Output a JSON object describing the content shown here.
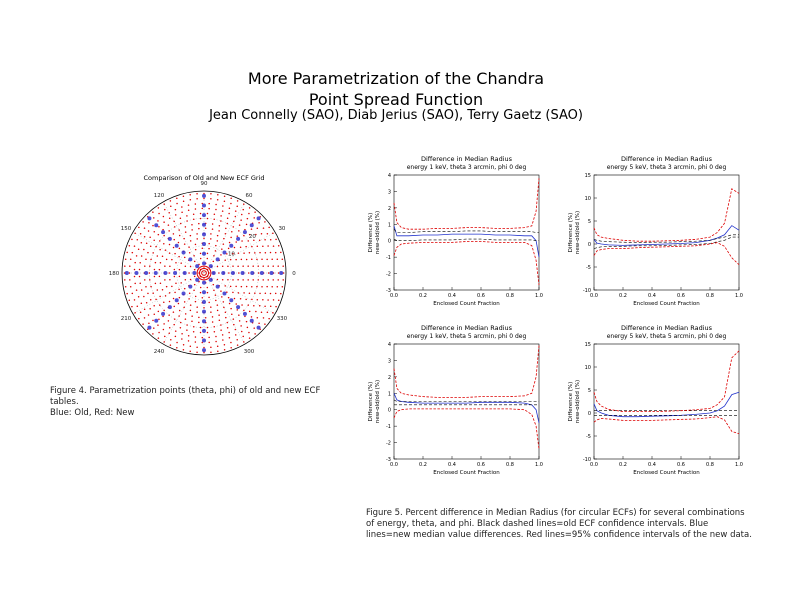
{
  "header": {
    "title_line1": "More Parametrization of the Chandra",
    "title_line2": "Point Spread Function",
    "authors": "Jean Connelly (SAO), Diab Jerius (SAO), Terry Gaetz (SAO)"
  },
  "figure4": {
    "caption": "Figure 4.  Parametrization points (theta, phi) of old and new ECF tables.\nBlue: Old, Red: New",
    "chart_data": {
      "type": "scatter",
      "title": "Comparison of Old and New ECF Grid",
      "angle_labels": [
        "0",
        "30",
        "60",
        "90",
        "120",
        "150",
        "180",
        "210",
        "240",
        "270",
        "300",
        "330"
      ],
      "radial_labels": [
        "10",
        "20"
      ],
      "series": [
        {
          "name": "Old",
          "color": "#3333cc"
        },
        {
          "name": "New",
          "color": "#dd0000"
        }
      ]
    }
  },
  "figure5": {
    "caption": "Figure 5.  Percent difference in Median Radius (for circular ECFs) for several combinations\nof energy, theta, and phi.  Black dashed lines=old ECF confidence intervals.  Blue\nlines=new median value differences.  Red lines=95% confidence intervals of the new data.",
    "panels": [
      {
        "title": "Difference in Median Radius",
        "subtitle": "energy  1 keV, theta  3 arcmin, phi  0 deg",
        "xlabel": "Enclosed Count Fraction",
        "ylabel": "Difference (%)",
        "ylabel2": "new-old/old (%)",
        "xticks": [
          "0.0",
          "0.2",
          "0.4",
          "0.6",
          "0.8",
          "1.0"
        ],
        "yticks": [
          "4",
          "3",
          "2",
          "1",
          "0",
          "-1",
          "-2",
          "-3"
        ],
        "chart_data": {
          "type": "line",
          "x": [
            0.0,
            0.02,
            0.05,
            0.1,
            0.2,
            0.3,
            0.4,
            0.5,
            0.6,
            0.7,
            0.8,
            0.9,
            0.95,
            0.98,
            1.0
          ],
          "ylim": [
            -3,
            4
          ],
          "series": [
            {
              "name": "median",
              "color": "#2233cc",
              "values": [
                0.9,
                0.3,
                0.3,
                0.3,
                0.35,
                0.35,
                0.4,
                0.4,
                0.4,
                0.35,
                0.35,
                0.3,
                0.3,
                0.0,
                -1.0
              ]
            },
            {
              "name": "old interval upper",
              "color": "#000000",
              "values": [
                0.7,
                0.5,
                0.5,
                0.5,
                0.55,
                0.55,
                0.55,
                0.6,
                0.6,
                0.55,
                0.55,
                0.55,
                0.55,
                0.5,
                0.5
              ]
            },
            {
              "name": "old interval lower",
              "color": "#000000",
              "values": [
                0.1,
                0.0,
                0.0,
                0.0,
                0.05,
                0.05,
                0.05,
                0.1,
                0.1,
                0.05,
                0.05,
                0.05,
                0.05,
                0.0,
                0.0
              ]
            },
            {
              "name": "new 95% upper",
              "color": "#dd0000",
              "values": [
                2.3,
                1.1,
                0.8,
                0.7,
                0.7,
                0.75,
                0.75,
                0.8,
                0.8,
                0.75,
                0.75,
                0.8,
                0.9,
                1.8,
                3.8
              ]
            },
            {
              "name": "new 95% lower",
              "color": "#dd0000",
              "values": [
                -0.9,
                -0.4,
                -0.2,
                -0.15,
                -0.1,
                -0.1,
                -0.1,
                -0.05,
                -0.05,
                -0.1,
                -0.1,
                -0.1,
                -0.3,
                -1.2,
                -2.7
              ]
            }
          ]
        }
      },
      {
        "title": "Difference in Median Radius",
        "subtitle": "energy  5 keV, theta  3 arcmin, phi  0 deg",
        "xlabel": "Enclosed Count Fraction",
        "ylabel": "Difference (%)",
        "ylabel2": "new-old/old (%)",
        "xticks": [
          "0.0",
          "0.2",
          "0.4",
          "0.6",
          "0.8",
          "1.0"
        ],
        "yticks": [
          "15",
          "10",
          "5",
          "0",
          "-5",
          "-10"
        ],
        "chart_data": {
          "type": "line",
          "x": [
            0.0,
            0.02,
            0.05,
            0.1,
            0.2,
            0.3,
            0.4,
            0.5,
            0.6,
            0.7,
            0.8,
            0.85,
            0.9,
            0.95,
            1.0
          ],
          "ylim": [
            -10,
            15
          ],
          "series": [
            {
              "name": "median",
              "color": "#2233cc",
              "values": [
                1.0,
                0.2,
                0.0,
                -0.2,
                -0.3,
                -0.2,
                -0.1,
                0.0,
                0.1,
                0.3,
                0.8,
                1.3,
                2.0,
                4.0,
                3.0
              ]
            },
            {
              "name": "old interval upper",
              "color": "#000000",
              "values": [
                1.0,
                0.8,
                0.6,
                0.5,
                0.4,
                0.3,
                0.4,
                0.4,
                0.5,
                0.6,
                0.8,
                1.2,
                1.5,
                2.0,
                2.0
              ]
            },
            {
              "name": "old interval lower",
              "color": "#000000",
              "values": [
                -1.0,
                -0.8,
                -0.6,
                -0.5,
                -0.5,
                -0.4,
                -0.4,
                -0.3,
                -0.2,
                -0.1,
                0.1,
                0.5,
                0.8,
                1.5,
                1.5
              ]
            },
            {
              "name": "new 95% upper",
              "color": "#dd0000",
              "values": [
                3.5,
                2.0,
                1.5,
                1.2,
                0.8,
                0.6,
                0.6,
                0.7,
                0.8,
                1.0,
                1.5,
                2.5,
                4.5,
                12.0,
                11.0
              ]
            },
            {
              "name": "new 95% lower",
              "color": "#dd0000",
              "values": [
                -2.5,
                -1.5,
                -1.2,
                -1.0,
                -1.0,
                -0.8,
                -0.7,
                -0.6,
                -0.5,
                -0.4,
                0.0,
                0.3,
                -0.5,
                -3.0,
                -4.5
              ]
            }
          ]
        }
      },
      {
        "title": "Difference in Median Radius",
        "subtitle": "energy  1 keV, theta  5 arcmin, phi  0 deg",
        "xlabel": "Enclosed Count Fraction",
        "ylabel": "Difference (%)",
        "ylabel2": "new-old/old (%)",
        "xticks": [
          "0.0",
          "0.2",
          "0.4",
          "0.6",
          "0.8",
          "1.0"
        ],
        "yticks": [
          "4",
          "3",
          "2",
          "1",
          "0",
          "-1",
          "-2",
          "-3"
        ],
        "chart_data": {
          "type": "line",
          "x": [
            0.0,
            0.02,
            0.05,
            0.1,
            0.2,
            0.3,
            0.4,
            0.5,
            0.6,
            0.7,
            0.8,
            0.9,
            0.95,
            0.98,
            1.0
          ],
          "ylim": [
            -3,
            4
          ],
          "series": [
            {
              "name": "median",
              "color": "#2233cc",
              "values": [
                1.0,
                0.6,
                0.5,
                0.45,
                0.4,
                0.4,
                0.4,
                0.4,
                0.45,
                0.45,
                0.45,
                0.4,
                0.3,
                0.0,
                -0.8
              ]
            },
            {
              "name": "old interval upper",
              "color": "#000000",
              "values": [
                0.6,
                0.5,
                0.5,
                0.5,
                0.5,
                0.5,
                0.5,
                0.5,
                0.5,
                0.5,
                0.5,
                0.5,
                0.5,
                0.5,
                0.5
              ]
            },
            {
              "name": "old interval lower",
              "color": "#000000",
              "values": [
                0.3,
                0.3,
                0.3,
                0.3,
                0.3,
                0.3,
                0.3,
                0.3,
                0.3,
                0.3,
                0.3,
                0.3,
                0.3,
                0.3,
                0.3
              ]
            },
            {
              "name": "new 95% upper",
              "color": "#dd0000",
              "values": [
                2.5,
                1.3,
                1.0,
                0.9,
                0.8,
                0.75,
                0.75,
                0.75,
                0.8,
                0.8,
                0.8,
                0.85,
                1.0,
                2.0,
                3.9
              ]
            },
            {
              "name": "new 95% lower",
              "color": "#dd0000",
              "values": [
                -0.5,
                -0.1,
                0.0,
                0.05,
                0.05,
                0.05,
                0.05,
                0.05,
                0.05,
                0.05,
                0.05,
                0.0,
                -0.3,
                -1.0,
                -2.4
              ]
            }
          ]
        }
      },
      {
        "title": "Difference in Median Radius",
        "subtitle": "energy  5 keV, theta  5 arcmin, phi  0 deg",
        "xlabel": "Enclosed Count Fraction",
        "ylabel": "Difference (%)",
        "ylabel2": "new-old/old (%)",
        "xticks": [
          "0.0",
          "0.2",
          "0.4",
          "0.6",
          "0.8",
          "1.0"
        ],
        "yticks": [
          "15",
          "10",
          "5",
          "0",
          "-5",
          "-10"
        ],
        "chart_data": {
          "type": "line",
          "x": [
            0.0,
            0.02,
            0.05,
            0.1,
            0.2,
            0.3,
            0.4,
            0.5,
            0.6,
            0.7,
            0.8,
            0.85,
            0.9,
            0.95,
            1.0
          ],
          "ylim": [
            -10,
            15
          ],
          "series": [
            {
              "name": "median",
              "color": "#2233cc",
              "values": [
                2.0,
                0.5,
                0.0,
                -0.5,
                -0.8,
                -0.8,
                -0.7,
                -0.6,
                -0.5,
                -0.3,
                0.0,
                0.5,
                1.5,
                4.0,
                4.5
              ]
            },
            {
              "name": "old interval upper",
              "color": "#000000",
              "values": [
                0.5,
                0.5,
                0.5,
                0.5,
                0.5,
                0.5,
                0.5,
                0.5,
                0.5,
                0.5,
                0.5,
                0.5,
                0.5,
                0.5,
                0.5
              ]
            },
            {
              "name": "old interval lower",
              "color": "#000000",
              "values": [
                -0.5,
                -0.5,
                -0.5,
                -0.5,
                -0.5,
                -0.5,
                -0.5,
                -0.5,
                -0.5,
                -0.5,
                -0.5,
                -0.5,
                -0.5,
                -0.5,
                -0.5
              ]
            },
            {
              "name": "new 95% upper",
              "color": "#dd0000",
              "values": [
                4.5,
                2.5,
                1.5,
                0.8,
                0.3,
                0.3,
                0.3,
                0.4,
                0.5,
                0.7,
                1.0,
                1.8,
                3.5,
                12.0,
                13.5
              ]
            },
            {
              "name": "new 95% lower",
              "color": "#dd0000",
              "values": [
                -2.0,
                -1.5,
                -1.2,
                -1.3,
                -1.6,
                -1.6,
                -1.6,
                -1.5,
                -1.4,
                -1.3,
                -1.0,
                -0.8,
                -1.5,
                -4.0,
                -4.5
              ]
            }
          ]
        }
      }
    ]
  }
}
